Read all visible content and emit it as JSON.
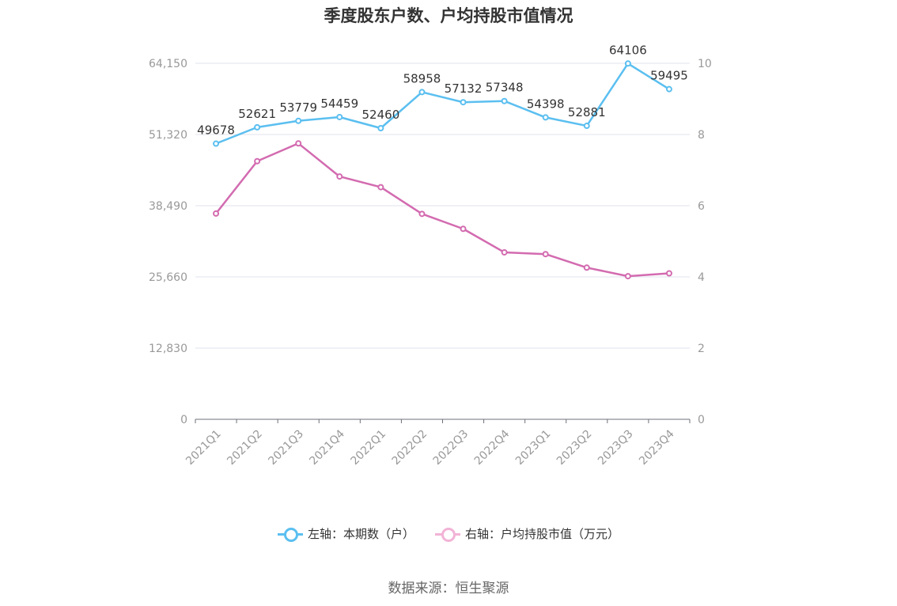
{
  "title": "季度股东户数、户均持股市值情况",
  "source_text": "数据来源：恒生聚源",
  "legend": [
    {
      "label": "左轴：本期数（户）",
      "color": "#5bbff0",
      "icon": "line-circle-icon"
    },
    {
      "label": "右轴：户均持股市值（万元）",
      "color": "#f2b3d6",
      "icon": "line-circle-icon"
    }
  ],
  "chart_data": {
    "type": "line",
    "title": "季度股东户数、户均持股市值情况",
    "categories": [
      "2021Q1",
      "2021Q2",
      "2021Q3",
      "2021Q4",
      "2022Q1",
      "2022Q2",
      "2022Q3",
      "2022Q4",
      "2023Q1",
      "2023Q2",
      "2023Q3",
      "2023Q4"
    ],
    "left_axis": {
      "ticks": [
        "0",
        "12,830",
        "25,660",
        "38,490",
        "51,320",
        "64,150"
      ],
      "range": [
        0,
        64150
      ]
    },
    "right_axis": {
      "ticks": [
        "0",
        "2",
        "4",
        "6",
        "8",
        "10"
      ],
      "range": [
        0,
        10
      ]
    },
    "grid": true,
    "legend_position": "bottom",
    "series": [
      {
        "name": "左轴：本期数（户）",
        "axis": "left",
        "color": "#5bbff0",
        "values": [
          49678,
          52621,
          53779,
          54459,
          52460,
          58958,
          57132,
          57348,
          54398,
          52881,
          64106,
          59495
        ],
        "labels": [
          "49678",
          "52621",
          "53779",
          "54459",
          "52460",
          "58958",
          "57132",
          "57348",
          "54398",
          "52881",
          "64106",
          "59495"
        ]
      },
      {
        "name": "右轴：户均持股市值（万元）",
        "axis": "right",
        "color": "#d36bb0",
        "values": [
          5.78,
          7.25,
          7.75,
          6.82,
          6.52,
          5.77,
          5.35,
          4.69,
          4.64,
          4.26,
          4.02,
          4.1
        ]
      }
    ]
  }
}
